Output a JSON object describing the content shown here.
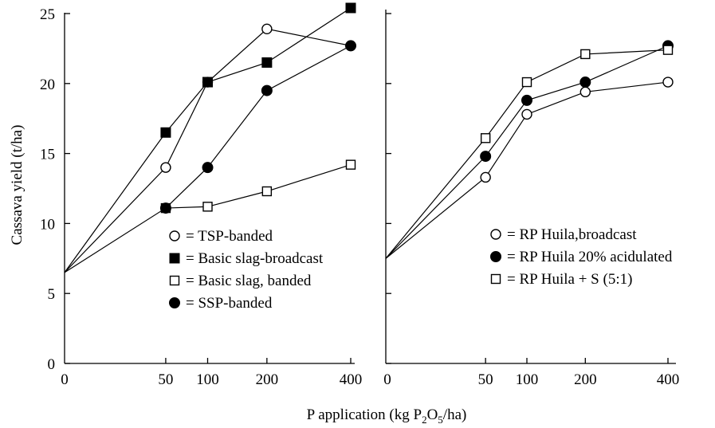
{
  "figure": {
    "ylabel": "Cassava yield (t/ha)",
    "xlabel_parts": [
      "P application (kg P",
      "2",
      "O",
      "5",
      "/ha)"
    ]
  },
  "chart_data": [
    {
      "type": "line",
      "panel": "left",
      "xlabel": "P application (kg P2O5/ha)",
      "ylabel": "Cassava yield (t/ha)",
      "ylim": [
        0,
        25
      ],
      "y_ticks": [
        0,
        5,
        10,
        15,
        20,
        25
      ],
      "x_ticks": [
        0,
        50,
        100,
        200,
        400
      ],
      "x_scale": "square-root",
      "legend_position": "lower-right",
      "grid": false,
      "series": [
        {
          "name": "TSP-banded",
          "marker": "open-circle",
          "fill": "#ffffff",
          "x": [
            0,
            50,
            100,
            200,
            400
          ],
          "y": [
            6.5,
            14.0,
            20.1,
            23.9,
            22.7
          ]
        },
        {
          "name": "Basic slag-broadcast",
          "marker": "filled-square",
          "fill": "#000000",
          "x": [
            0,
            50,
            100,
            200,
            400
          ],
          "y": [
            6.5,
            16.5,
            20.1,
            21.5,
            25.4
          ]
        },
        {
          "name": "Basic slag, banded",
          "marker": "open-square",
          "fill": "#ffffff",
          "x": [
            50,
            100,
            200,
            400
          ],
          "y": [
            11.1,
            11.2,
            12.3,
            14.2
          ]
        },
        {
          "name": "SSP-banded",
          "marker": "filled-circle",
          "fill": "#000000",
          "x": [
            0,
            50,
            100,
            200,
            400
          ],
          "y": [
            6.5,
            11.1,
            14.0,
            19.5,
            22.7
          ]
        }
      ]
    },
    {
      "type": "line",
      "panel": "right",
      "ylim": [
        0,
        25
      ],
      "x_ticks": [
        0,
        50,
        100,
        200,
        400
      ],
      "x_scale": "square-root",
      "legend_position": "center-right",
      "grid": false,
      "series": [
        {
          "name": "RP Huila,broadcast",
          "marker": "open-circle",
          "fill": "#ffffff",
          "x": [
            0,
            50,
            100,
            200,
            400
          ],
          "y": [
            7.5,
            13.3,
            17.8,
            19.4,
            20.1
          ]
        },
        {
          "name": "RP Huila 20% acidulated",
          "marker": "filled-circle",
          "fill": "#000000",
          "x": [
            0,
            50,
            100,
            200,
            400
          ],
          "y": [
            7.5,
            14.8,
            18.8,
            20.1,
            22.7
          ]
        },
        {
          "name": "RP Huila + S (5:1)",
          "marker": "open-square",
          "fill": "#ffffff",
          "x": [
            0,
            50,
            100,
            200,
            400
          ],
          "y": [
            7.5,
            16.1,
            20.1,
            22.1,
            22.4
          ]
        }
      ]
    }
  ]
}
